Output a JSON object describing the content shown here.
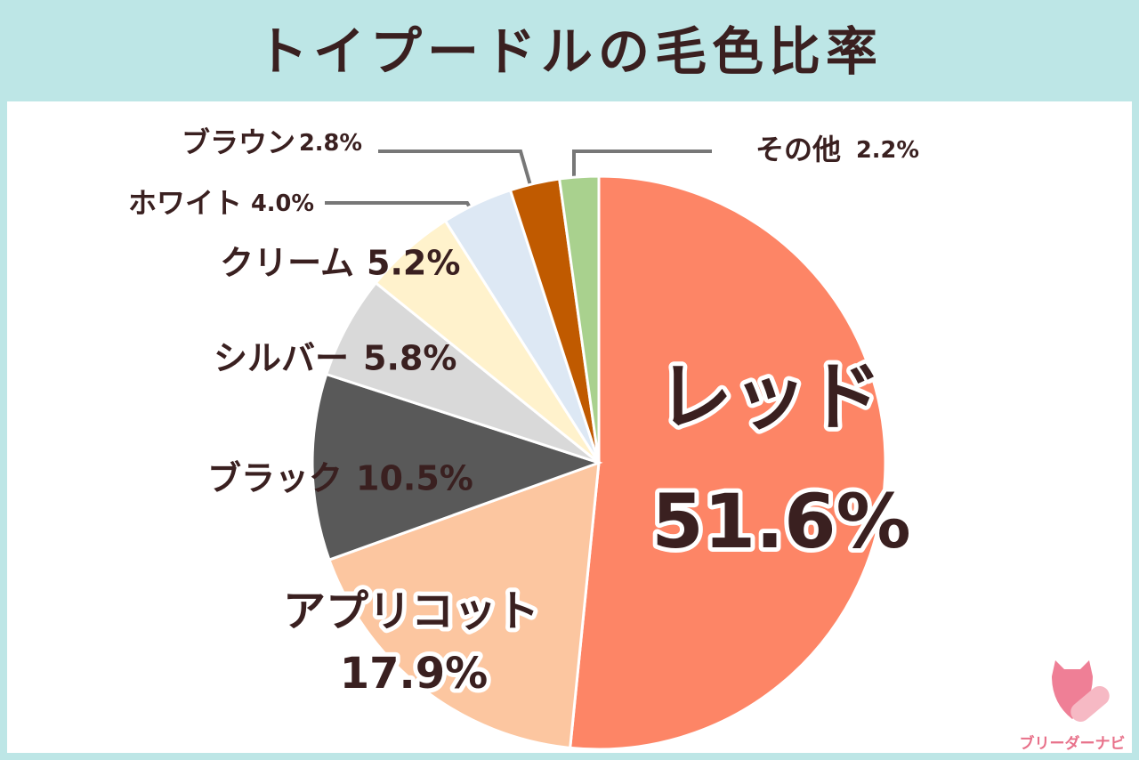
{
  "chart_data": {
    "type": "pie",
    "title": "トイプードルの毛色比率",
    "categories": [
      "レッド",
      "アプリコット",
      "ブラック",
      "シルバー",
      "クリーム",
      "ホワイト",
      "ブラウン",
      "その他"
    ],
    "values": [
      51.6,
      17.9,
      10.5,
      5.8,
      5.2,
      4.0,
      2.8,
      2.2
    ],
    "value_labels": [
      "51.6%",
      "17.9%",
      "10.5%",
      "5.8%",
      "5.2%",
      "4.0%",
      "2.8%",
      "2.2%"
    ],
    "colors": [
      "#fd8566",
      "#fcc6a0",
      "#595959",
      "#d9d9d9",
      "#fff2cc",
      "#dde8f4",
      "#c05a00",
      "#a9d18e"
    ]
  },
  "logo": "ブリーダーナビ"
}
